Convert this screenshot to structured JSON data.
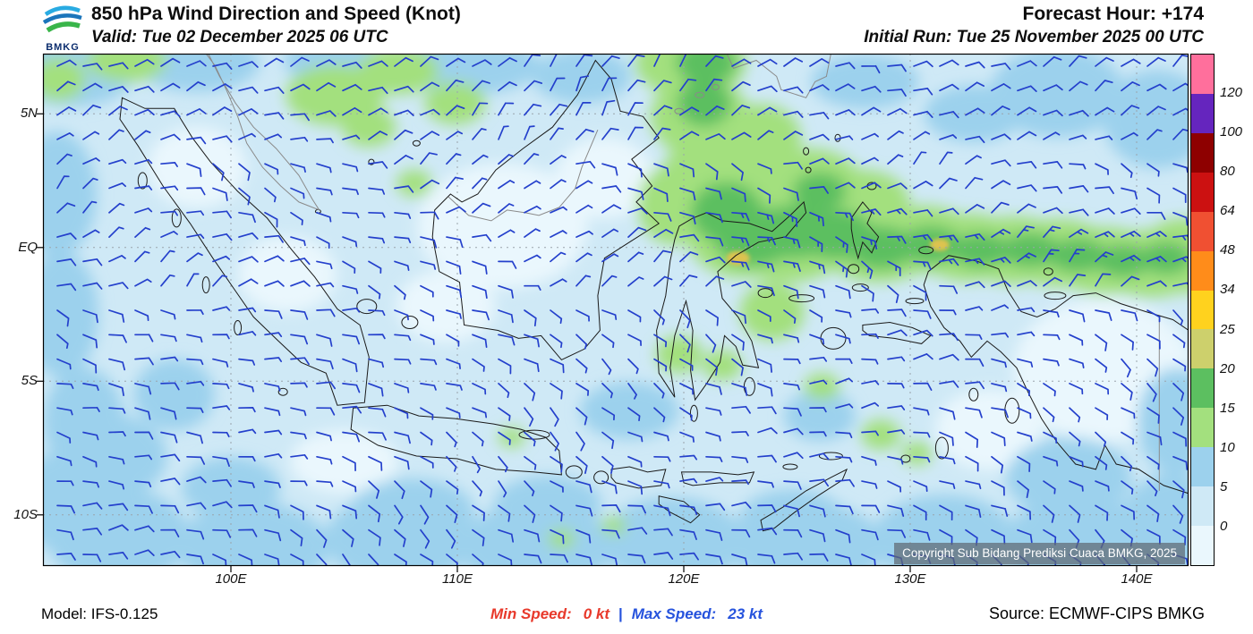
{
  "header": {
    "logo": "BMKG",
    "title": "850 hPa Wind Direction and Speed (Knot)",
    "valid_label": "Valid: Tue 02 December 2025 06 UTC",
    "forecast_hour": "Forecast Hour: +174",
    "initial_run": "Initial Run: Tue 25 November 2025 00 UTC"
  },
  "map": {
    "x_ticks": [
      "100E",
      "110E",
      "120E",
      "130E",
      "140E"
    ],
    "y_ticks": [
      "5N",
      "EQ",
      "5S",
      "10S"
    ],
    "copyright": "Copyright Sub Bidang Prediksi Cuaca BMKG, 2025"
  },
  "legend": {
    "boundary_labels": [
      "120",
      "100",
      "80",
      "64",
      "48",
      "34",
      "25",
      "20",
      "15",
      "10",
      "5",
      "0"
    ],
    "band_colors_top_to_bottom": [
      "#ff6f9c",
      "#6525be",
      "#8e0000",
      "#cc1111",
      "#f05032",
      "#ff8c1a",
      "#ffd21e",
      "#cdd06c",
      "#5cbf60",
      "#a3e07e",
      "#9cd1ed",
      "#cfe9f6",
      "#eaf7fd"
    ]
  },
  "footer": {
    "model": "Model: IFS-0.125",
    "min_label": "Min Speed:",
    "min_value": "0 kt",
    "divider": "|",
    "max_label": "Max Speed:",
    "max_value": "23 kt",
    "source": "Source: ECMWF-CIPS BMKG"
  },
  "colors": {
    "min_speed_text": "#e8392b",
    "max_speed_text": "#2653dd",
    "wind_barb": "#2440cc"
  },
  "chart_data": {
    "type": "heatmap",
    "title": "850 hPa Wind Direction and Speed (Knot)",
    "valid_time": "Tue 02 December 2025 06 UTC",
    "initial_run": "Tue 25 November 2025 00 UTC",
    "forecast_hour": "+174",
    "x_ticks": [
      "100E",
      "110E",
      "120E",
      "130E",
      "140E"
    ],
    "y_ticks": [
      "5N",
      "EQ",
      "5S",
      "10S"
    ],
    "colorbar_levels_kt": [
      0,
      5,
      10,
      15,
      20,
      25,
      34,
      48,
      64,
      80,
      100,
      120
    ],
    "min_speed_kt": 0,
    "max_speed_kt": 23,
    "model": "IFS-0.125",
    "source": "ECMWF-CIPS BMKG",
    "legend_position": "right"
  }
}
